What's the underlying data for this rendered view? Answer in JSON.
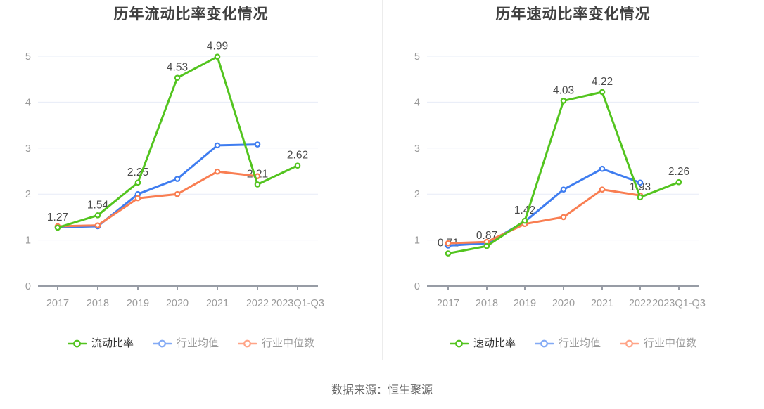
{
  "footer": {
    "source_text": "数据来源：恒生聚源"
  },
  "style": {
    "grid_color": "#e7ecf7",
    "axis_color": "#979ca5",
    "title_color": "#404040",
    "tick_label_color": "#9a9a9a",
    "value_label_color": "#4a4a4a"
  },
  "chart_data": [
    {
      "type": "line",
      "title": "历年流动比率变化情况",
      "xlabel": "",
      "ylabel": "",
      "categories": [
        "2017",
        "2018",
        "2019",
        "2020",
        "2021",
        "2022",
        "2023Q1-Q3"
      ],
      "yticks": [
        0,
        1,
        2,
        3,
        4,
        5
      ],
      "ylim": [
        0,
        5
      ],
      "grid": true,
      "legend_position": "bottom",
      "series": [
        {
          "name": "流动比率",
          "color": "#53c41f",
          "legend_color": "#53c41f",
          "values": [
            1.27,
            1.54,
            2.25,
            4.53,
            4.99,
            2.21,
            2.62
          ],
          "labels": [
            "1.27",
            "1.54",
            "2.25",
            "4.53",
            "4.99",
            "2.21",
            "2.62"
          ]
        },
        {
          "name": "行业均值",
          "color": "#3f7df0",
          "legend_color": "#83aaf5",
          "values": [
            1.28,
            1.3,
            2.0,
            2.33,
            3.06,
            3.08,
            null
          ]
        },
        {
          "name": "行业中位数",
          "color": "#f97e52",
          "legend_color": "#ffa487",
          "values": [
            1.3,
            1.32,
            1.91,
            2.0,
            2.49,
            2.39,
            null
          ]
        }
      ]
    },
    {
      "type": "line",
      "title": "历年速动比率变化情况",
      "xlabel": "",
      "ylabel": "",
      "categories": [
        "2017",
        "2018",
        "2019",
        "2020",
        "2021",
        "2022",
        "2023Q1-Q3"
      ],
      "yticks": [
        0,
        1,
        2,
        3,
        4,
        5
      ],
      "ylim": [
        0,
        5
      ],
      "grid": true,
      "legend_position": "bottom",
      "series": [
        {
          "name": "速动比率",
          "color": "#53c41f",
          "legend_color": "#53c41f",
          "values": [
            0.71,
            0.87,
            1.42,
            4.03,
            4.22,
            1.93,
            2.26
          ],
          "labels": [
            "0.71",
            "0.87",
            "1.42",
            "4.03",
            "4.22",
            "1.93",
            "2.26"
          ]
        },
        {
          "name": "行业均值",
          "color": "#3f7df0",
          "legend_color": "#83aaf5",
          "values": [
            0.88,
            0.93,
            1.4,
            2.1,
            2.55,
            2.25,
            null
          ]
        },
        {
          "name": "行业中位数",
          "color": "#f97e52",
          "legend_color": "#ffa487",
          "values": [
            0.93,
            0.96,
            1.35,
            1.5,
            2.1,
            1.97,
            null
          ]
        }
      ]
    }
  ]
}
